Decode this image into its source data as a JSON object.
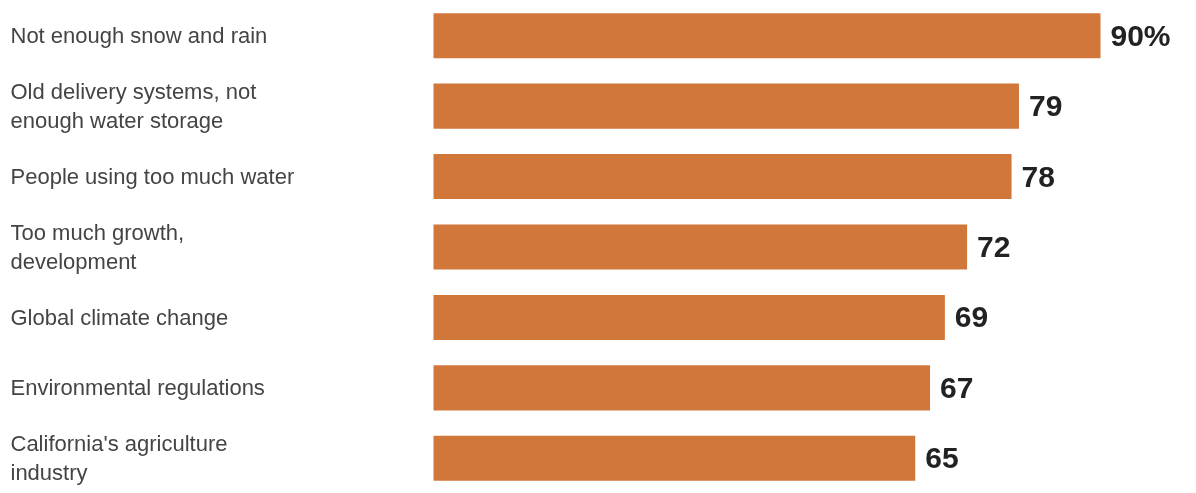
{
  "chart_data": {
    "type": "bar",
    "orientation": "horizontal",
    "categories": [
      "Not enough snow and rain",
      "Old delivery systems, not enough water storage",
      "People using too much water",
      "Too much growth, development",
      "Global climate change",
      "Environmental regulations",
      "California's agriculture industry"
    ],
    "values": [
      90,
      79,
      78,
      72,
      69,
      67,
      65
    ],
    "value_labels": [
      "90%",
      "79",
      "78",
      "72",
      "69",
      "67",
      "65"
    ],
    "color": "#d2773a",
    "grid": false
  }
}
